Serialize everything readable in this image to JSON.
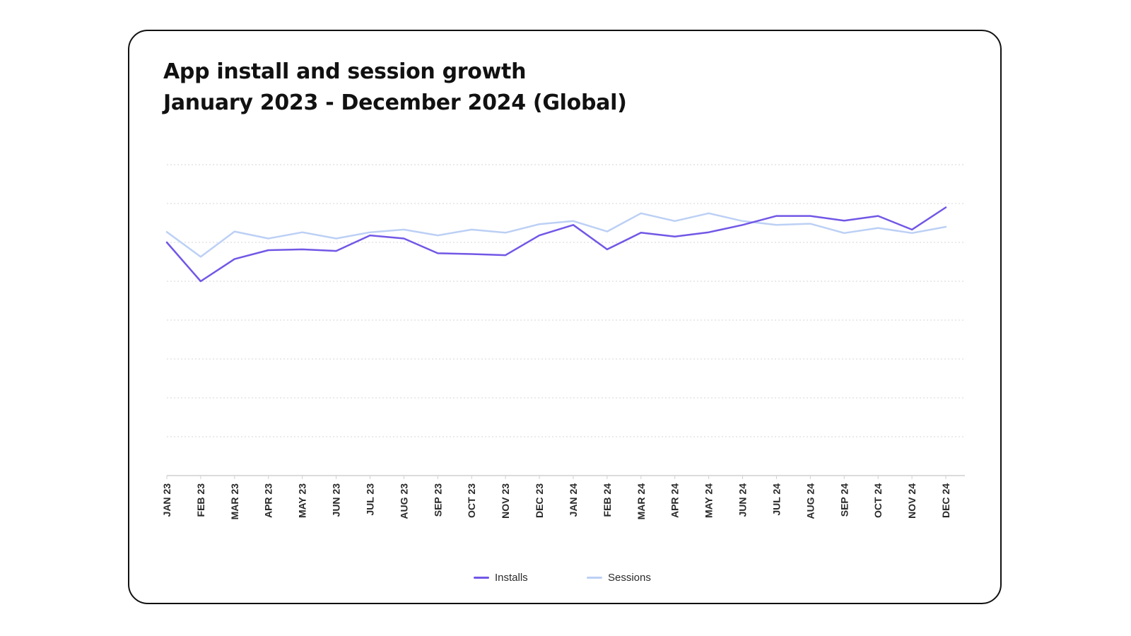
{
  "chart_data": {
    "type": "line",
    "title": "App install and session growth",
    "subtitle": "January 2023 - December 2024 (Global)",
    "categories": [
      "JAN 23",
      "FEB 23",
      "MAR 23",
      "APR 23",
      "MAY 23",
      "JUN 23",
      "JUL 23",
      "AUG 23",
      "SEP 23",
      "OCT 23",
      "NOV 23",
      "DEC 23",
      "JAN 24",
      "FEB 24",
      "MAR 24",
      "APR 24",
      "MAY 24",
      "JUN 24",
      "JUL 24",
      "AUG 24",
      "SEP 24",
      "OCT 24",
      "NOV 24",
      "DEC 24"
    ],
    "series": [
      {
        "name": "Installs",
        "color": "#7257e6",
        "values": [
          6.0,
          5.0,
          5.57,
          5.8,
          5.82,
          5.78,
          6.18,
          6.1,
          5.72,
          5.7,
          5.67,
          6.18,
          6.45,
          5.82,
          6.25,
          6.15,
          6.26,
          6.45,
          6.68,
          6.68,
          6.56,
          6.68,
          6.33,
          6.9
        ]
      },
      {
        "name": "Sessions",
        "color": "#bcd0f5",
        "values": [
          6.27,
          5.63,
          6.28,
          6.1,
          6.26,
          6.1,
          6.26,
          6.33,
          6.18,
          6.33,
          6.25,
          6.47,
          6.55,
          6.28,
          6.75,
          6.55,
          6.75,
          6.55,
          6.45,
          6.48,
          6.24,
          6.37,
          6.24,
          6.4
        ]
      }
    ],
    "ylim": [
      0,
      8
    ],
    "grid": true,
    "legend": "bottom-center"
  }
}
